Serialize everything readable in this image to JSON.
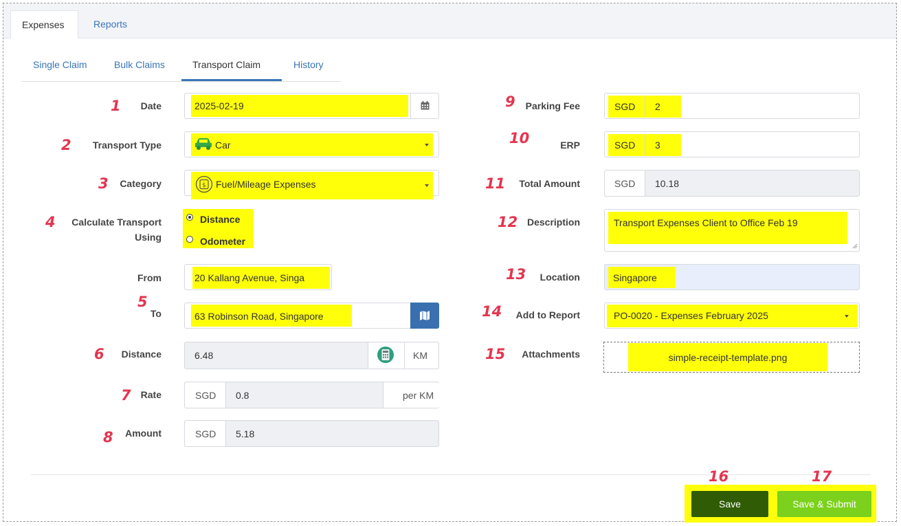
{
  "tabs": {
    "expenses": "Expenses",
    "reports": "Reports"
  },
  "subtabs": {
    "single": "Single Claim",
    "bulk": "Bulk Claims",
    "transport": "Transport Claim",
    "history": "History"
  },
  "markers": [
    "1",
    "2",
    "3",
    "4",
    "5",
    "6",
    "7",
    "8",
    "9",
    "10",
    "11",
    "12",
    "13",
    "14",
    "15",
    "16",
    "17"
  ],
  "form": {
    "date": {
      "label": "Date",
      "value": "2025-02-19"
    },
    "transport_type": {
      "label": "Transport Type",
      "value": "Car"
    },
    "category": {
      "label": "Category",
      "value": "Fuel/Mileage Expenses"
    },
    "calc": {
      "label_1": "Calculate Transport",
      "label_2": "Using",
      "opt_distance": "Distance",
      "opt_odometer": "Odometer",
      "selected": "Distance"
    },
    "from": {
      "label": "From",
      "value": "20 Kallang Avenue, Singa"
    },
    "to": {
      "label": "To",
      "value": "63 Robinson Road, Singapore"
    },
    "distance": {
      "label": "Distance",
      "value": "6.48",
      "unit": "KM"
    },
    "rate": {
      "label": "Rate",
      "currency": "SGD",
      "value": "0.8",
      "unit": "per KM"
    },
    "amount": {
      "label": "Amount",
      "currency": "SGD",
      "value": "5.18"
    },
    "parking": {
      "label": "Parking Fee",
      "currency": "SGD",
      "value": "2"
    },
    "erp": {
      "label": "ERP",
      "currency": "SGD",
      "value": "3"
    },
    "total": {
      "label": "Total Amount",
      "currency": "SGD",
      "value": "10.18"
    },
    "description": {
      "label": "Description",
      "value": "Transport Expenses Client to Office Feb 19"
    },
    "location": {
      "label": "Location",
      "value": "Singapore"
    },
    "report": {
      "label": "Add to Report",
      "value": "PO-0020 - Expenses February 2025"
    },
    "attachments": {
      "label": "Attachments",
      "file": "simple-receipt-template.png"
    }
  },
  "buttons": {
    "save": "Save",
    "save_submit": "Save & Submit"
  },
  "colors": {
    "link": "#3a74b8",
    "highlight": "#ffff0a",
    "marker": "#e4354f",
    "save": "#2f5c05",
    "save_submit": "#7bd11c",
    "map_btn": "#3a6fb0"
  }
}
